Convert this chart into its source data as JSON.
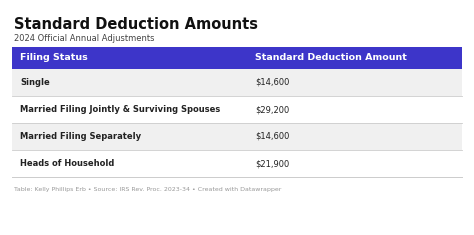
{
  "title": "Standard Deduction Amounts",
  "subtitle": "2024 Official Annual Adjustments",
  "col1_header": "Filing Status",
  "col2_header": "Standard Deduction Amount",
  "rows": [
    [
      "Single",
      "$14,600"
    ],
    [
      "Married Filing Jointly & Surviving Spouses",
      "$29,200"
    ],
    [
      "Married Filing Separately",
      "$14,600"
    ],
    [
      "Heads of Household",
      "$21,900"
    ]
  ],
  "footer": "Table: Kelly Phillips Erb • Source: IRS Rev. Proc. 2023-34 • Created with Datawrapper",
  "header_bg": "#3d35c9",
  "header_fg": "#ffffff",
  "row_bg_alt": "#f0f0f0",
  "row_bg_white": "#ffffff",
  "border_color": "#cccccc",
  "title_color": "#111111",
  "subtitle_color": "#444444",
  "footer_color": "#999999",
  "bg_color": "#ffffff"
}
